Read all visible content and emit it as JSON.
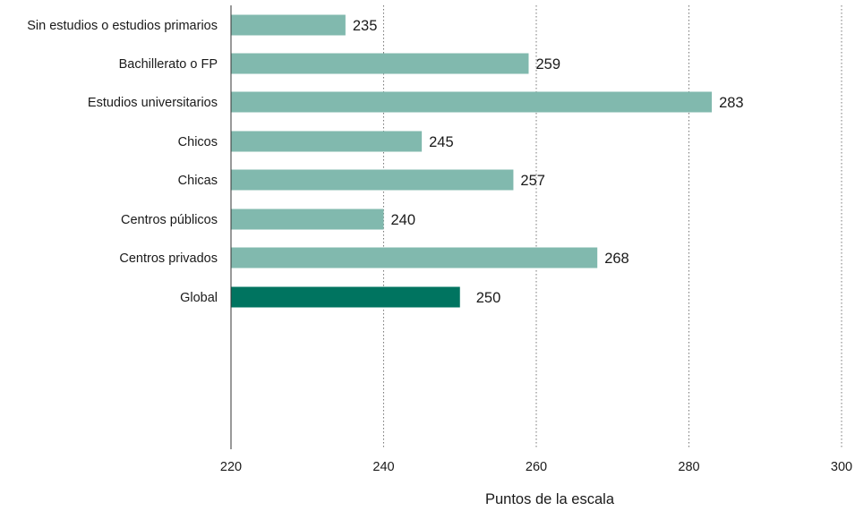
{
  "chart_data": {
    "type": "bar",
    "orientation": "horizontal",
    "categories": [
      "Sin estudios o estudios primarios",
      "Bachillerato o FP",
      "Estudios universitarios",
      "Chicos",
      "Chicas",
      "Centros públicos",
      "Centros privados",
      "Global"
    ],
    "values": [
      235,
      259,
      283,
      245,
      257,
      240,
      268,
      250
    ],
    "groups": [
      [
        0,
        1,
        2
      ],
      [
        3,
        4
      ],
      [
        5,
        6
      ],
      [
        7
      ]
    ],
    "data_labels": [
      "235",
      "259",
      "283",
      "245",
      "257",
      "240",
      "268",
      "250"
    ],
    "xlim": [
      220,
      300
    ],
    "xticks": [
      "220",
      "240",
      "260",
      "280",
      "300"
    ],
    "xlabel": "Puntos de la escala",
    "ylabel": "",
    "title": "",
    "grid": "vertical dotted",
    "colors": {
      "bar": "#81b9ae",
      "highlight": "#007460",
      "grid": "#777777",
      "axis": "#333333"
    },
    "highlight_index": 7
  }
}
